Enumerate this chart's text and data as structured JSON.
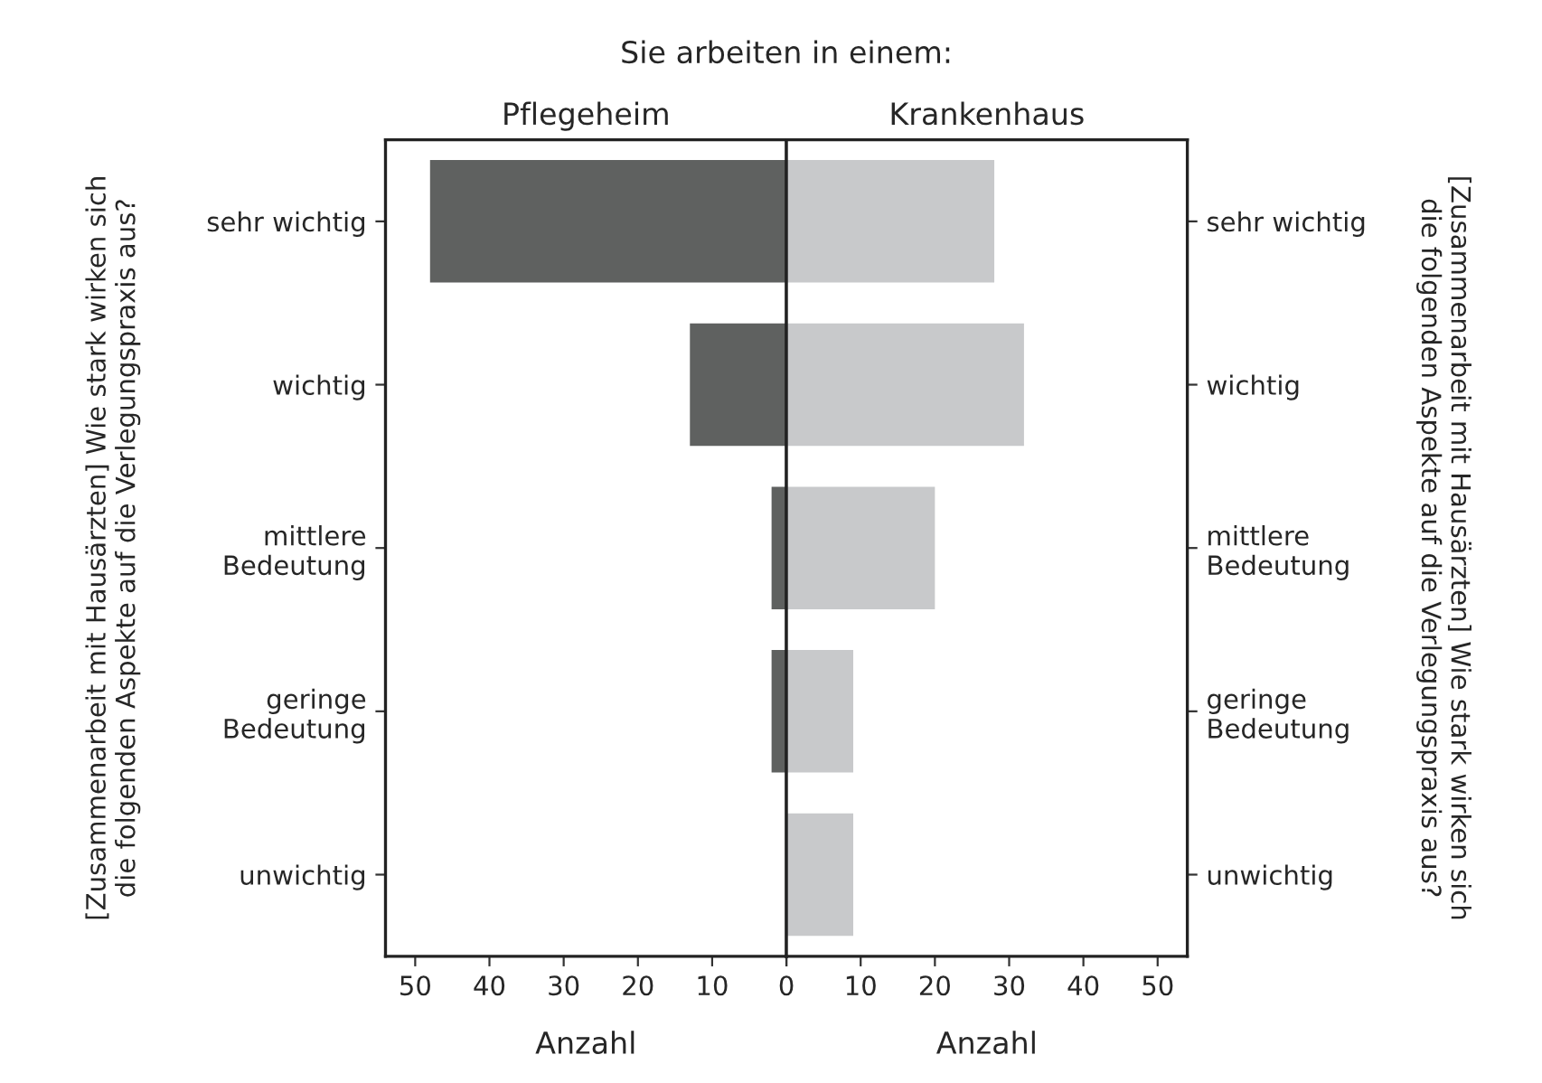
{
  "chart_data": [
    {
      "type": "bar",
      "orientation": "horizontal",
      "title": "Pflegeheim",
      "annotations": [
        "Sie arbeiten in einem:"
      ],
      "xlabel": "Anzahl",
      "ylabel": "[Zusammenarbeit mit Hausärzten] Wie stark wirken sich\ndie folgenden Aspekte auf die Verlegungspraxis aus?",
      "categories": [
        "sehr wichtig",
        "wichtig",
        "mittlere\nBedeutung",
        "geringe\nBedeutung",
        "unwichtig"
      ],
      "series": [
        {
          "color": "#5f6160",
          "values": [
            48,
            13,
            2,
            2,
            null
          ]
        }
      ],
      "xlim": [
        54,
        0
      ],
      "xticks": [
        50,
        40,
        30,
        20,
        10,
        0
      ]
    },
    {
      "type": "bar",
      "orientation": "horizontal",
      "title": "Krankenhaus",
      "xlabel": "Anzahl",
      "y2label": "[Zusammenarbeit mit Hausärzten] Wie stark wirken sich\ndie folgenden Aspekte auf die Verlegungspraxis aus?",
      "categories": [
        "sehr wichtig",
        "wichtig",
        "mittlere\nBedeutung",
        "geringe\nBedeutung",
        "unwichtig"
      ],
      "series": [
        {
          "color": "#c8c9cb",
          "values": [
            28,
            32,
            20,
            9,
            9
          ]
        }
      ],
      "xlim": [
        0,
        54
      ],
      "xticks": [
        {
          "value": 0,
          "label": null
        },
        10,
        20,
        30,
        40,
        50
      ]
    }
  ]
}
